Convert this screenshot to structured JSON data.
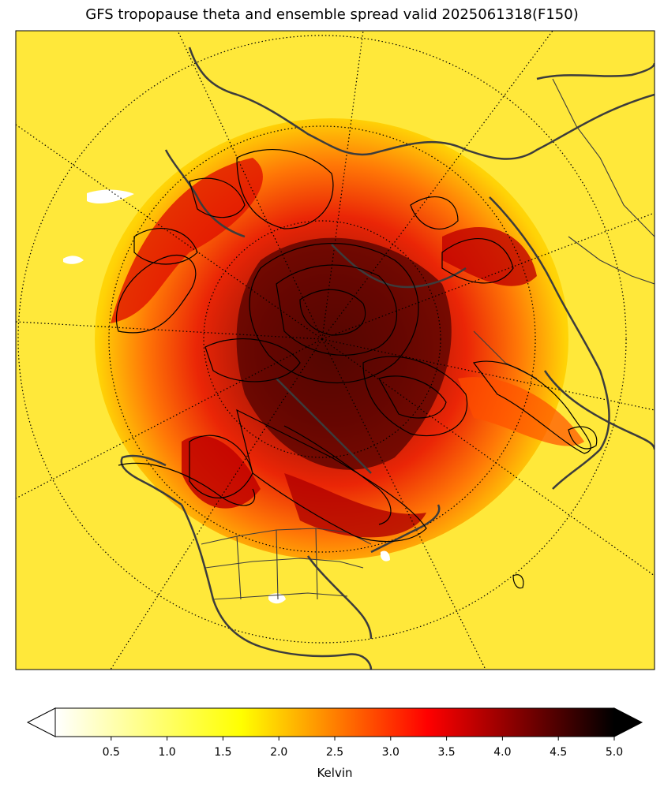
{
  "title": "GFS tropopause theta and ensemble spread valid 2025061318(F150)",
  "colorbar": {
    "label": "Kelvin",
    "min": 0.0,
    "max": 5.0,
    "ticks": [
      "0.5",
      "1.0",
      "1.5",
      "2.0",
      "2.5",
      "3.0",
      "3.5",
      "4.0",
      "4.5",
      "5.0"
    ],
    "extend": "both",
    "colormap": "hot_r",
    "stops": [
      "#ffffff",
      "#ffff00",
      "#ff0000",
      "#000000"
    ]
  },
  "map": {
    "projection": "north-polar-stereographic",
    "center": "north-pole",
    "graticule": "dotted",
    "coastline_color": "#3c3c3c",
    "contour_color": "#000000"
  }
}
